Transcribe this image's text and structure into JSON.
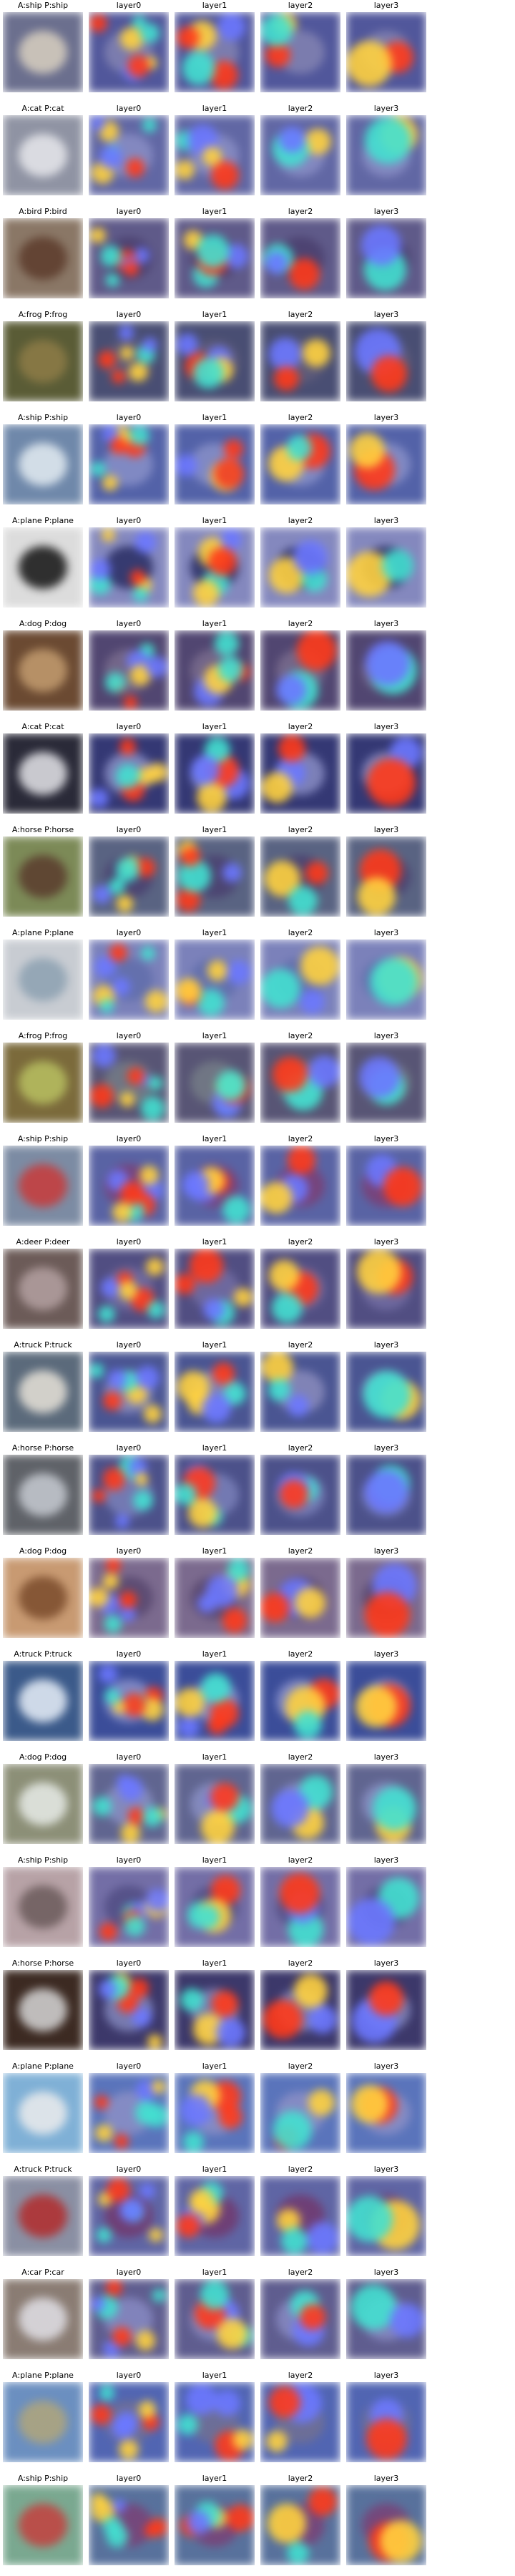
{
  "column_labels": [
    "layer0",
    "layer1",
    "layer2",
    "layer3"
  ],
  "rows": [
    {
      "caption": "A:ship P:ship",
      "base": "#6b6f8e",
      "accent": "#d8d0c0"
    },
    {
      "caption": "A:cat P:cat",
      "base": "#8f93a3",
      "accent": "#e8e8ec"
    },
    {
      "caption": "A:bird P:bird",
      "base": "#8a7766",
      "accent": "#5c3b2b"
    },
    {
      "caption": "A:frog P:frog",
      "base": "#5a5c36",
      "accent": "#8e7b47"
    },
    {
      "caption": "A:ship P:ship",
      "base": "#6f88aa",
      "accent": "#e4ecf2"
    },
    {
      "caption": "A:plane P:plane",
      "base": "#dcdcdc",
      "accent": "#111111"
    },
    {
      "caption": "A:dog P:dog",
      "base": "#6b4a32",
      "accent": "#c39c70"
    },
    {
      "caption": "A:cat P:cat",
      "base": "#2a2a38",
      "accent": "#e5e5ea"
    },
    {
      "caption": "A:horse P:horse",
      "base": "#7c8a57",
      "accent": "#5a3b2d"
    },
    {
      "caption": "A:plane P:plane",
      "base": "#c8ccd2",
      "accent": "#8ca0b2"
    },
    {
      "caption": "A:frog P:frog",
      "base": "#7b6a3b",
      "accent": "#b8c062"
    },
    {
      "caption": "A:ship P:ship",
      "base": "#7c8ba3",
      "accent": "#c93a3a"
    },
    {
      "caption": "A:deer P:deer",
      "base": "#6c5b58",
      "accent": "#b4a1a1"
    },
    {
      "caption": "A:truck P:truck",
      "base": "#5b6a7b",
      "accent": "#e8e2d8"
    },
    {
      "caption": "A:horse P:horse",
      "base": "#5f6268",
      "accent": "#c7cbd2"
    },
    {
      "caption": "A:dog P:dog",
      "base": "#c89a72",
      "accent": "#7a4b2b"
    },
    {
      "caption": "A:truck P:truck",
      "base": "#3b5a8a",
      "accent": "#e9f0f8"
    },
    {
      "caption": "A:dog P:dog",
      "base": "#8c8f77",
      "accent": "#e8ece8"
    },
    {
      "caption": "A:ship P:ship",
      "base": "#b7a2a6",
      "accent": "#6b5a5a"
    },
    {
      "caption": "A:horse P:horse",
      "base": "#3c2a22",
      "accent": "#d6d6d6"
    },
    {
      "caption": "A:plane P:plane",
      "base": "#7fb0d6",
      "accent": "#ececec"
    },
    {
      "caption": "A:truck P:truck",
      "base": "#8a8fa3",
      "accent": "#b12b2b"
    },
    {
      "caption": "A:car P:car",
      "base": "#8a7c73",
      "accent": "#e0e0e6"
    },
    {
      "caption": "A:plane P:plane",
      "base": "#6b8fc0",
      "accent": "#b0a67a"
    },
    {
      "caption": "A:ship P:ship",
      "base": "#7aa890",
      "accent": "#c4403e"
    }
  ],
  "overlay_colors": {
    "background": "#3d44a6",
    "hot": "#ff3a1a",
    "warm": "#ffd23f",
    "cool": "#42e0d0",
    "mid": "#6b78ff"
  }
}
